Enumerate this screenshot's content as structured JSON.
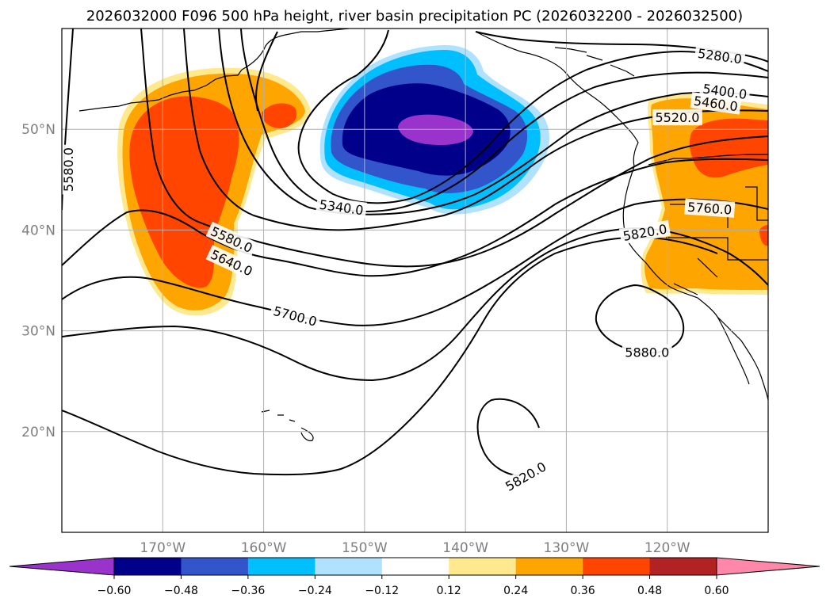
{
  "title": "2026032000 F096 500 hPa height, river basin precipitation PC (2026032200 - 2026032500)",
  "map": {
    "projection": "PlateCarree",
    "extent": {
      "lon_min": -180,
      "lon_max": -110,
      "lat_min": 10,
      "lat_max": 60
    },
    "field": "river basin precipitation PC",
    "contour_field": "500 hPa height",
    "lon_ticks": [
      {
        "lon": -170,
        "label": "170°W"
      },
      {
        "lon": -160,
        "label": "160°W"
      },
      {
        "lon": -150,
        "label": "150°W"
      },
      {
        "lon": -140,
        "label": "140°W"
      },
      {
        "lon": -130,
        "label": "130°W"
      },
      {
        "lon": -120,
        "label": "120°W"
      }
    ],
    "lat_ticks": [
      {
        "lat": 50,
        "label": "50°N"
      },
      {
        "lat": 40,
        "label": "40°N"
      },
      {
        "lat": 30,
        "label": "30°N"
      },
      {
        "lat": 20,
        "label": "20°N"
      }
    ],
    "contour_labels": [
      {
        "text": "5280.0",
        "lon": -114.8,
        "lat": 57.2,
        "rot": 8
      },
      {
        "text": "5400.0",
        "lon": -114.3,
        "lat": 53.7,
        "rot": 8
      },
      {
        "text": "5460.0",
        "lon": -115.2,
        "lat": 52.5,
        "rot": 8
      },
      {
        "text": "5520.0",
        "lon": -119.0,
        "lat": 51.1,
        "rot": 0
      },
      {
        "text": "5580.0",
        "lon": -179.3,
        "lat": 46.0,
        "rot": -90
      },
      {
        "text": "5340.0",
        "lon": -152.3,
        "lat": 42.2,
        "rot": 8
      },
      {
        "text": "5760.0",
        "lon": -115.8,
        "lat": 42.1,
        "rot": 4
      },
      {
        "text": "5820.0",
        "lon": -122.2,
        "lat": 39.7,
        "rot": -10
      },
      {
        "text": "5580.0",
        "lon": -163.2,
        "lat": 39.0,
        "rot": 25
      },
      {
        "text": "5640.0",
        "lon": -163.2,
        "lat": 36.7,
        "rot": 25
      },
      {
        "text": "5700.0",
        "lon": -156.9,
        "lat": 31.4,
        "rot": 15
      },
      {
        "text": "5880.0",
        "lon": -122.0,
        "lat": 27.8,
        "rot": 0
      },
      {
        "text": "5820.0",
        "lon": -134.0,
        "lat": 15.5,
        "rot": -30
      }
    ]
  },
  "colorbar": {
    "levels": [
      -0.6,
      -0.48,
      -0.36,
      -0.24,
      -0.12,
      0.12,
      0.24,
      0.36,
      0.48,
      0.6
    ],
    "tick_labels": [
      "−0.60",
      "−0.48",
      "−0.36",
      "−0.24",
      "−0.12",
      "0.12",
      "0.24",
      "0.36",
      "0.48",
      "0.60"
    ],
    "colors": [
      "#9933cc",
      "#00008b",
      "#3355cc",
      "#00bfff",
      "#b0e2ff",
      "#ffffff",
      "#ffe98f",
      "#ffa500",
      "#ff4500",
      "#b22222",
      "#ff88aa"
    ],
    "extend": "both"
  }
}
